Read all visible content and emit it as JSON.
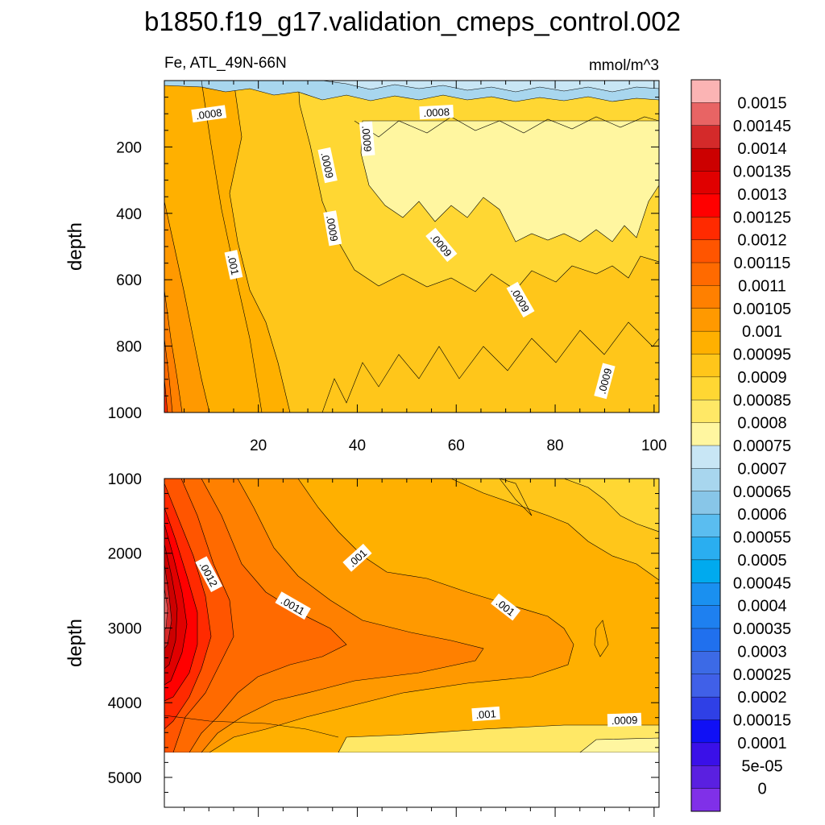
{
  "chart_data": {
    "type": "heatmap",
    "title": "b1850.f19_g17.validation_cmeps_control.002",
    "left_label": "Fe, ATL_49N-66N",
    "units_label": "mmol/m^3",
    "panels": [
      {
        "name": "upper",
        "ylabel": "depth",
        "xlim": [
          1,
          101
        ],
        "ylim": [
          1000,
          0
        ],
        "xticks": [
          20,
          40,
          60,
          80,
          100
        ],
        "xtick_labels": [
          "20",
          "40",
          "60",
          "80",
          "100"
        ],
        "yticks": [
          200,
          400,
          600,
          800,
          1000
        ],
        "ytick_labels": [
          "200",
          "400",
          "600",
          "800",
          "1000"
        ],
        "contour_labels": [
          {
            "text": ".0008",
            "x": 10,
            "y": 100,
            "angle": -8
          },
          {
            "text": ".0008",
            "x": 56,
            "y": 95,
            "angle": -3
          },
          {
            "text": ".0009",
            "x": 34,
            "y": 255,
            "angle": 78
          },
          {
            "text": ".0009",
            "x": 42,
            "y": 175,
            "angle": 85
          },
          {
            "text": ".0009",
            "x": 35,
            "y": 445,
            "angle": 80
          },
          {
            "text": ".001",
            "x": 15,
            "y": 555,
            "angle": 78
          },
          {
            "text": ".0009",
            "x": 57,
            "y": 495,
            "angle": 50
          },
          {
            "text": ".0009",
            "x": 73,
            "y": 660,
            "angle": 60
          },
          {
            "text": ".0009",
            "x": 90,
            "y": 905,
            "angle": -75
          }
        ]
      },
      {
        "name": "lower",
        "ylabel": "depth",
        "xlim": [
          1,
          101
        ],
        "ylim": [
          5400,
          1000
        ],
        "missing_below": 4620,
        "yticks": [
          1000,
          2000,
          3000,
          4000,
          5000
        ],
        "ytick_labels": [
          "1000",
          "2000",
          "3000",
          "4000",
          "5000"
        ],
        "contour_labels": [
          {
            "text": ".0012",
            "x": 10,
            "y": 2280,
            "angle": 62
          },
          {
            "text": ".0011",
            "x": 27,
            "y": 2700,
            "angle": 30
          },
          {
            "text": ".001",
            "x": 40,
            "y": 2060,
            "angle": -42
          },
          {
            "text": ".001",
            "x": 70,
            "y": 2720,
            "angle": 38
          },
          {
            "text": ".001",
            "x": 66,
            "y": 4150,
            "angle": -4
          },
          {
            "text": ".0009",
            "x": 94,
            "y": 4230,
            "angle": -2
          }
        ]
      }
    ],
    "colorbar": {
      "levels": [
        "0.0015",
        "0.00145",
        "0.0014",
        "0.00135",
        "0.0013",
        "0.00125",
        "0.0012",
        "0.00115",
        "0.0011",
        "0.00105",
        "0.001",
        "0.00095",
        "0.0009",
        "0.00085",
        "0.0008",
        "0.00075",
        "0.0007",
        "0.00065",
        "0.0006",
        "0.00055",
        "0.0005",
        "0.00045",
        "0.0004",
        "0.00035",
        "0.0003",
        "0.00025",
        "0.0002",
        "0.00015",
        "0.0001",
        "5e-05",
        "0"
      ],
      "colors": [
        "#fbb4b4",
        "#e86464",
        "#d42a2a",
        "#cc0000",
        "#e00000",
        "#ff0000",
        "#ff2a00",
        "#ff5500",
        "#ff6a00",
        "#ff8000",
        "#ff9900",
        "#ffb000",
        "#ffc61a",
        "#ffd733",
        "#ffe866",
        "#fff6a0",
        "#c8e6f5",
        "#a8d6ee",
        "#88c6e8",
        "#5abdf0",
        "#2aaef0",
        "#00aaee",
        "#1a90f0",
        "#1e80f0",
        "#2070ee",
        "#3c6ae6",
        "#4060e8",
        "#2f40e6",
        "#1010f5",
        "#3a10e8",
        "#5a20e0",
        "#8030e8"
      ]
    }
  }
}
